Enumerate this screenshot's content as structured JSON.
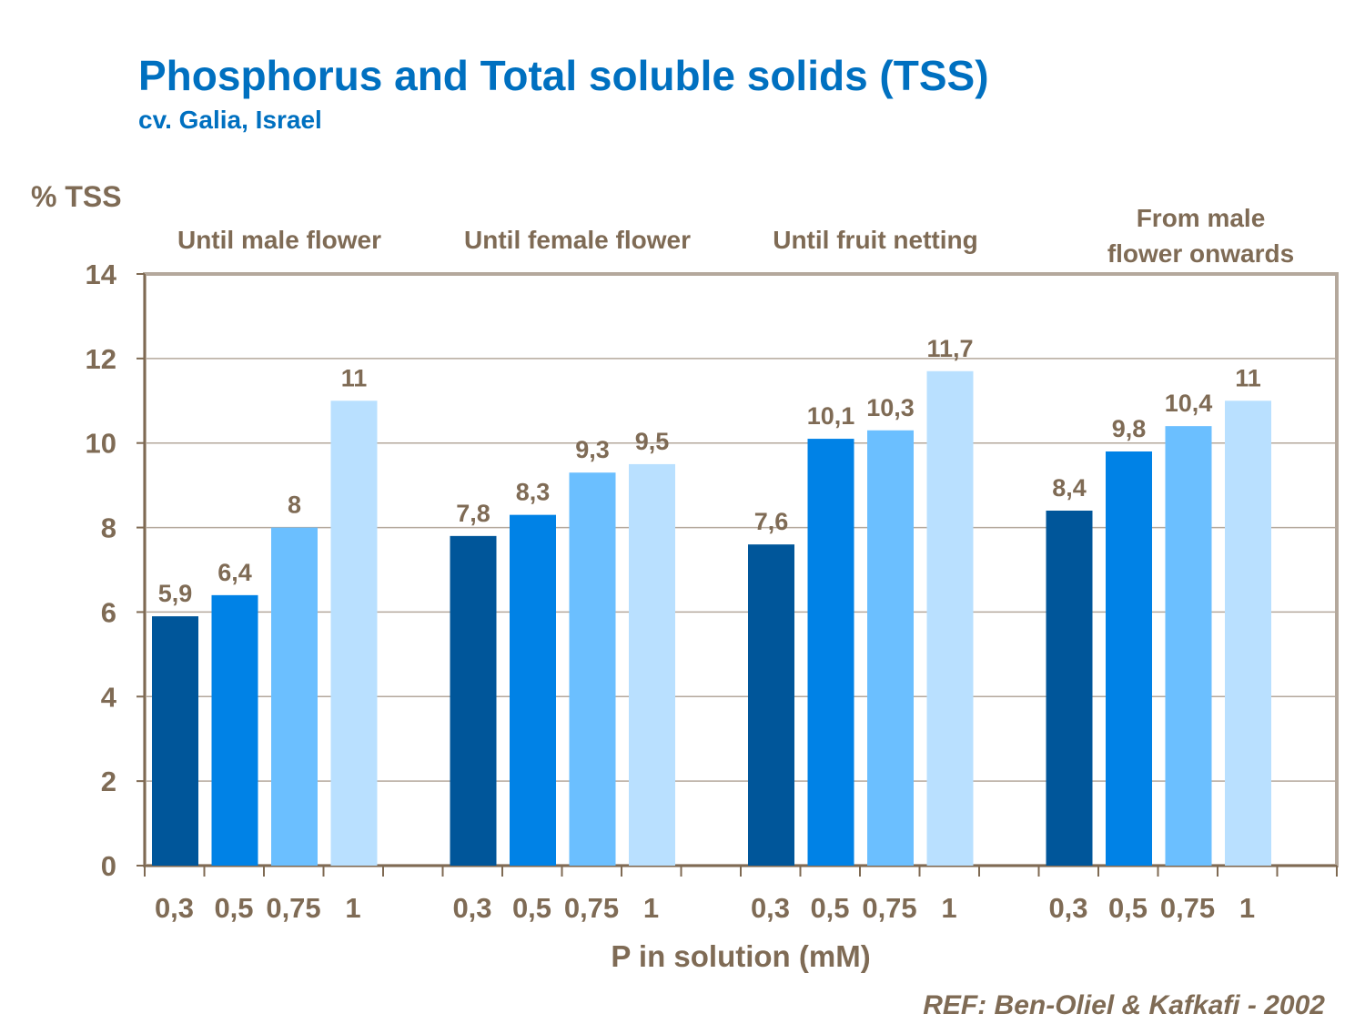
{
  "chart_data": {
    "type": "bar",
    "title": "Phosphorus and Total soluble solids (TSS)",
    "subtitle": "cv. Galia, Israel",
    "ylabel": "% TSS",
    "xlabel": "P in solution (mM)",
    "ylim": [
      0,
      14
    ],
    "yticks": [
      "0",
      "2",
      "4",
      "6",
      "8",
      "10",
      "12",
      "14"
    ],
    "grid": true,
    "categories": [
      "0,3",
      "0,5",
      "0,75",
      "1"
    ],
    "groups": [
      {
        "label": "Until male flower",
        "values": [
          5.9,
          6.4,
          8,
          11
        ],
        "data_labels": [
          "5,9",
          "6,4",
          "8",
          "11"
        ]
      },
      {
        "label": "Until female flower",
        "values": [
          7.8,
          8.3,
          9.3,
          9.5
        ],
        "data_labels": [
          "7,8",
          "8,3",
          "9,3",
          "9,5"
        ]
      },
      {
        "label": "Until fruit netting",
        "values": [
          7.6,
          10.1,
          10.3,
          11.7
        ],
        "data_labels": [
          "7,6",
          "10,1",
          "10,3",
          "11,7"
        ]
      },
      {
        "label": "From male flower onwards",
        "label_lines": [
          "From male",
          "flower onwards"
        ],
        "values": [
          8.4,
          9.8,
          10.4,
          11
        ],
        "data_labels": [
          "8,4",
          "9,8",
          "10,4",
          "11"
        ]
      }
    ],
    "colors": [
      "#00569A",
      "#0082E6",
      "#6BBFFF",
      "#B9E0FF"
    ]
  },
  "reference": "REF: Ben-Oliel & Kafkafi - 2002"
}
